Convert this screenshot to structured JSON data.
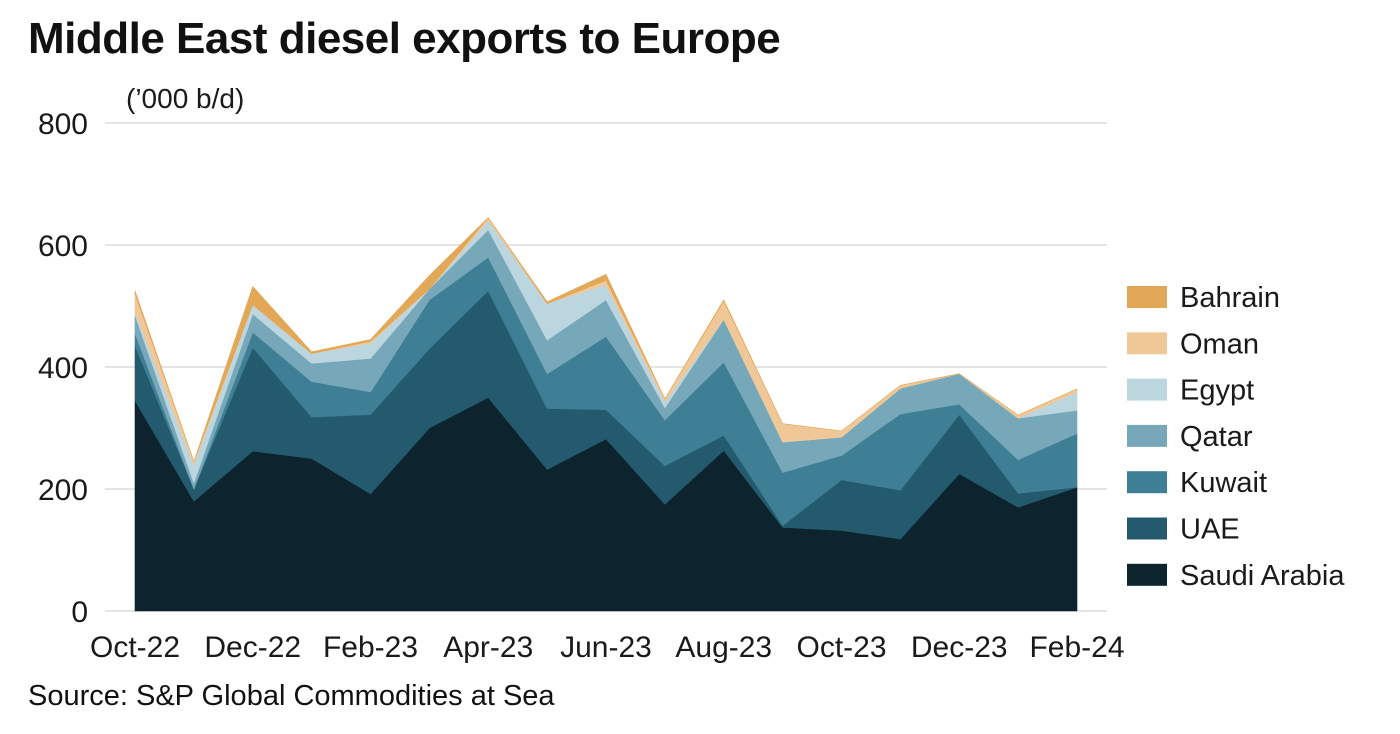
{
  "title": "Middle East diesel exports to Europe",
  "source": "Source: S&P Global Commodities at Sea",
  "chart_data": {
    "type": "area",
    "stacked": true,
    "title": "Middle East diesel exports to Europe",
    "ylabel": "('000 b/d)",
    "ylabel_text": "(’000 b/d)",
    "ylim": [
      0,
      800
    ],
    "yticks": [
      0,
      200,
      400,
      600,
      800
    ],
    "ytick_labels": [
      "0",
      "200",
      "400",
      "600",
      "800"
    ],
    "grid": true,
    "legend_position": "right",
    "x": [
      "Oct-22",
      "Nov-22",
      "Dec-22",
      "Jan-23",
      "Feb-23",
      "Mar-23",
      "Apr-23",
      "May-23",
      "Jun-23",
      "Jul-23",
      "Aug-23",
      "Sep-23",
      "Oct-23",
      "Nov-23",
      "Dec-23",
      "Jan-24",
      "Feb-24"
    ],
    "xtick_labels": [
      "Oct-22",
      "Dec-22",
      "Feb-23",
      "Apr-23",
      "Jun-23",
      "Aug-23",
      "Oct-23",
      "Dec-23",
      "Feb-24"
    ],
    "xtick_indices": [
      0,
      2,
      4,
      6,
      8,
      10,
      12,
      14,
      16
    ],
    "series": [
      {
        "name": "Saudi Arabia",
        "color": "#0d232e",
        "values": [
          345,
          180,
          262,
          250,
          192,
          300,
          350,
          232,
          282,
          175,
          263,
          137,
          132,
          118,
          225,
          170,
          203
        ]
      },
      {
        "name": "UAE",
        "color": "#245a6e",
        "values": [
          90,
          20,
          170,
          68,
          130,
          130,
          175,
          100,
          48,
          63,
          25,
          3,
          83,
          80,
          97,
          23,
          0
        ]
      },
      {
        "name": "Kuwait",
        "color": "#3e7f96",
        "values": [
          20,
          0,
          25,
          58,
          37,
          80,
          55,
          57,
          120,
          75,
          120,
          87,
          40,
          125,
          17,
          55,
          88
        ]
      },
      {
        "name": "Qatar",
        "color": "#77a8b9",
        "values": [
          30,
          10,
          30,
          30,
          55,
          18,
          45,
          55,
          60,
          20,
          70,
          50,
          30,
          42,
          50,
          68,
          38
        ]
      },
      {
        "name": "Egypt",
        "color": "#bcd6df",
        "values": [
          5,
          30,
          15,
          16,
          25,
          0,
          15,
          60,
          25,
          10,
          0,
          0,
          0,
          0,
          0,
          0,
          30
        ]
      },
      {
        "name": "Oman",
        "color": "#f0c898",
        "values": [
          30,
          5,
          0,
          0,
          3,
          0,
          5,
          0,
          7,
          5,
          30,
          30,
          10,
          5,
          0,
          5,
          5
        ]
      },
      {
        "name": "Bahrain",
        "color": "#e3a758",
        "values": [
          5,
          0,
          30,
          3,
          3,
          22,
          0,
          3,
          10,
          0,
          2,
          0,
          0,
          0,
          0,
          0,
          0
        ]
      }
    ],
    "legend_order": [
      "Bahrain",
      "Oman",
      "Egypt",
      "Qatar",
      "Kuwait",
      "UAE",
      "Saudi Arabia"
    ]
  }
}
